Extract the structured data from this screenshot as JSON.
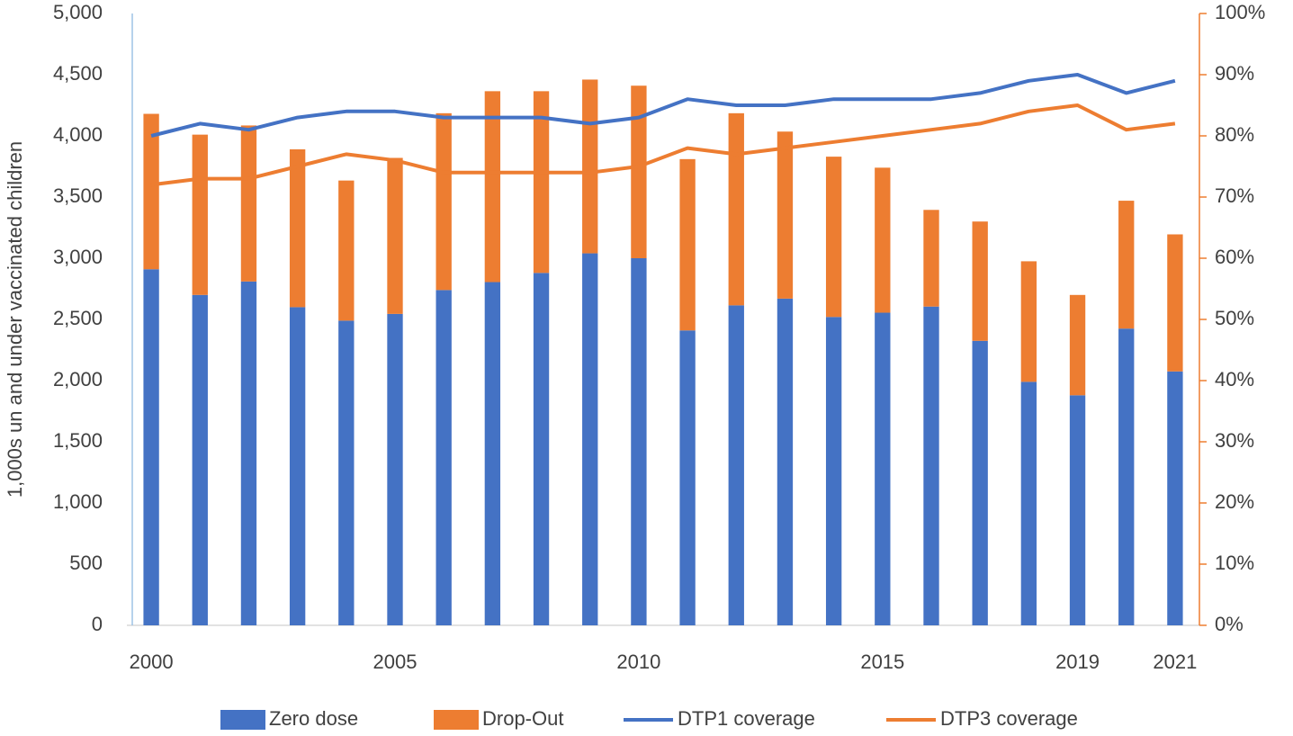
{
  "chart_data": {
    "type": "bar",
    "stacked": true,
    "y_label": "1,000s un and under vaccinated children",
    "categories": [
      "2000",
      null,
      null,
      null,
      null,
      "2005",
      null,
      null,
      null,
      null,
      "2010",
      null,
      null,
      null,
      null,
      "2015",
      null,
      null,
      null,
      "2019",
      null,
      "2021"
    ],
    "series": [
      {
        "name": "Zero dose",
        "type": "bar",
        "color": "#4472c4",
        "values": [
          2910,
          2700,
          2810,
          2600,
          2490,
          2545,
          2740,
          2805,
          2880,
          3040,
          3000,
          2410,
          2615,
          2670,
          2520,
          2555,
          2605,
          2325,
          1990,
          1880,
          2425,
          2075
        ]
      },
      {
        "name": "Drop-Out",
        "type": "bar",
        "color": "#ed7d31",
        "values": [
          1270,
          1310,
          1275,
          1290,
          1145,
          1275,
          1445,
          1560,
          1485,
          1420,
          1410,
          1400,
          1570,
          1365,
          1310,
          1185,
          790,
          975,
          985,
          820,
          1045,
          1120
        ]
      },
      {
        "name": "DTP1 coverage",
        "type": "line",
        "axis": "y2",
        "color": "#4472c4",
        "values": [
          80,
          82,
          81,
          83,
          84,
          84,
          83,
          83,
          83,
          82,
          83,
          86,
          85,
          85,
          86,
          86,
          86,
          87,
          89,
          90,
          87,
          89
        ]
      },
      {
        "name": "DTP3 coverage",
        "type": "line",
        "axis": "y2",
        "color": "#ed7d31",
        "values": [
          72,
          73,
          73,
          75,
          77,
          76,
          74,
          74,
          74,
          74,
          75,
          78,
          77,
          78,
          79,
          80,
          81,
          82,
          84,
          85,
          81,
          82
        ]
      }
    ],
    "ylim": [
      0,
      5000
    ],
    "yticks": [
      0,
      500,
      {
        "value": 1000,
        "label": "1,000"
      },
      {
        "value": 1500,
        "label": "1,500"
      },
      {
        "value": 2000,
        "label": "2,000"
      },
      {
        "value": 2500,
        "label": "2,500"
      },
      {
        "value": 3000,
        "label": "3,000"
      },
      {
        "value": 3500,
        "label": "3,500"
      },
      {
        "value": 4000,
        "label": "4,000"
      },
      {
        "value": 4500,
        "label": "4,500"
      },
      {
        "value": 5000,
        "label": "5,000"
      }
    ],
    "y2lim": [
      0,
      100
    ],
    "y2ticks": [
      {
        "value": 0,
        "label": "0%"
      },
      {
        "value": 10,
        "label": "10%"
      },
      {
        "value": 20,
        "label": "20%"
      },
      {
        "value": 30,
        "label": "30%"
      },
      {
        "value": 40,
        "label": "40%"
      },
      {
        "value": 50,
        "label": "50%"
      },
      {
        "value": 60,
        "label": "60%"
      },
      {
        "value": 70,
        "label": "70%"
      },
      {
        "value": 80,
        "label": "80%"
      },
      {
        "value": 90,
        "label": "90%"
      },
      {
        "value": 100,
        "label": "100%"
      }
    ],
    "legend": "bottom"
  }
}
